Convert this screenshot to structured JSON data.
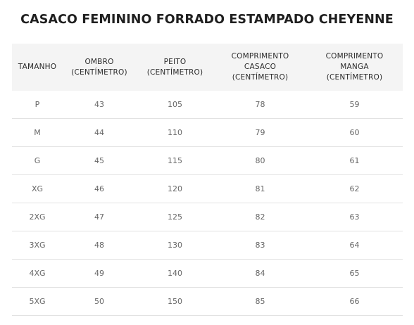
{
  "title": "CASACO FEMININO FORRADO ESTAMPADO CHEYENNE",
  "table": {
    "headers": [
      [
        "TAMANHO"
      ],
      [
        "OMBRO",
        "(CENTÍMETRO)"
      ],
      [
        "PEITO",
        "(CENTÍMETRO)"
      ],
      [
        "COMPRIMENTO",
        "CASACO",
        "(CENTÍMETRO)"
      ],
      [
        "COMPRIMENTO",
        "MANGA",
        "(CENTÍMETRO)"
      ]
    ],
    "rows": [
      [
        "P",
        "43",
        "105",
        "78",
        "59"
      ],
      [
        "M",
        "44",
        "110",
        "79",
        "60"
      ],
      [
        "G",
        "45",
        "115",
        "80",
        "61"
      ],
      [
        "XG",
        "46",
        "120",
        "81",
        "62"
      ],
      [
        "2XG",
        "47",
        "125",
        "82",
        "63"
      ],
      [
        "3XG",
        "48",
        "130",
        "83",
        "64"
      ],
      [
        "4XG",
        "49",
        "140",
        "84",
        "65"
      ],
      [
        "5XG",
        "50",
        "150",
        "85",
        "66"
      ]
    ]
  }
}
